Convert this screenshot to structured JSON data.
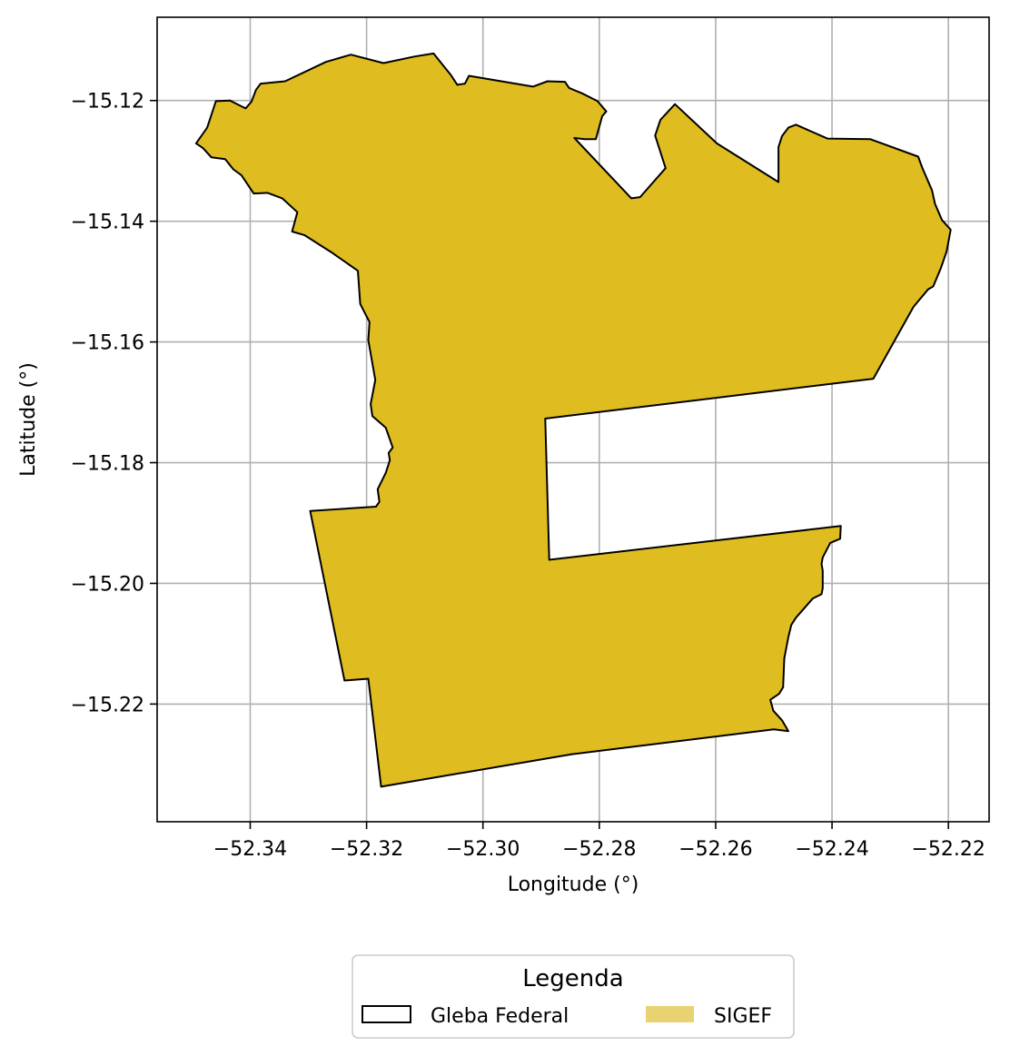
{
  "chart_data": {
    "type": "map",
    "xlabel": "Longitude (°)",
    "ylabel": "Latitude (°)",
    "xlim": [
      -52.356,
      -52.213
    ],
    "ylim": [
      -15.2395,
      -15.1062
    ],
    "x_ticks": [
      {
        "value": -52.34,
        "label": "−52.34"
      },
      {
        "value": -52.32,
        "label": "−52.32"
      },
      {
        "value": -52.3,
        "label": "−52.30"
      },
      {
        "value": -52.28,
        "label": "−52.28"
      },
      {
        "value": -52.26,
        "label": "−52.26"
      },
      {
        "value": -52.24,
        "label": "−52.24"
      },
      {
        "value": -52.22,
        "label": "−52.22"
      }
    ],
    "y_ticks": [
      {
        "value": -15.12,
        "label": "−15.12"
      },
      {
        "value": -15.14,
        "label": "−15.14"
      },
      {
        "value": -15.16,
        "label": "−15.16"
      },
      {
        "value": -15.18,
        "label": "−15.18"
      },
      {
        "value": -15.2,
        "label": "−15.20"
      },
      {
        "value": -15.22,
        "label": "−15.22"
      }
    ],
    "grid": true,
    "legend": {
      "title": "Legenda",
      "placement": "bottom-center",
      "entries": [
        {
          "label": "Gleba Federal",
          "style": "outline",
          "color": "#000000"
        },
        {
          "label": "SIGEF",
          "style": "fill",
          "color": "#e8d272"
        }
      ]
    },
    "polygon": {
      "fill": "#dfbd20",
      "stroke": "#000000",
      "coords": [
        [
          -52.3493,
          -15.1271
        ],
        [
          -52.3474,
          -15.1245
        ],
        [
          -52.3459,
          -15.1201
        ],
        [
          -52.3435,
          -15.12
        ],
        [
          -52.3408,
          -15.1213
        ],
        [
          -52.3398,
          -15.1202
        ],
        [
          -52.339,
          -15.1182
        ],
        [
          -52.3382,
          -15.1172
        ],
        [
          -52.334,
          -15.1168
        ],
        [
          -52.327,
          -15.1136
        ],
        [
          -52.3227,
          -15.1124
        ],
        [
          -52.3171,
          -15.1138
        ],
        [
          -52.3117,
          -15.1127
        ],
        [
          -52.3085,
          -15.1122
        ],
        [
          -52.3055,
          -15.1158
        ],
        [
          -52.3044,
          -15.1174
        ],
        [
          -52.3031,
          -15.1172
        ],
        [
          -52.3024,
          -15.1159
        ],
        [
          -52.2914,
          -15.1177
        ],
        [
          -52.2889,
          -15.1168
        ],
        [
          -52.2859,
          -15.1169
        ],
        [
          -52.2852,
          -15.1179
        ],
        [
          -52.283,
          -15.1188
        ],
        [
          -52.2803,
          -15.1201
        ],
        [
          -52.2788,
          -15.1218
        ],
        [
          -52.2795,
          -15.1226
        ],
        [
          -52.2806,
          -15.1264
        ],
        [
          -52.2825,
          -15.1264
        ],
        [
          -52.2843,
          -15.1262
        ],
        [
          -52.2745,
          -15.1362
        ],
        [
          -52.273,
          -15.136
        ],
        [
          -52.2686,
          -15.1312
        ],
        [
          -52.2704,
          -15.1258
        ],
        [
          -52.2695,
          -15.1232
        ],
        [
          -52.267,
          -15.1206
        ],
        [
          -52.2598,
          -15.1271
        ],
        [
          -52.2492,
          -15.1335
        ],
        [
          -52.2492,
          -15.1277
        ],
        [
          -52.2486,
          -15.1259
        ],
        [
          -52.2475,
          -15.1245
        ],
        [
          -52.2462,
          -15.124
        ],
        [
          -52.2408,
          -15.1263
        ],
        [
          -52.2334,
          -15.1264
        ],
        [
          -52.2252,
          -15.1293
        ],
        [
          -52.2245,
          -15.1311
        ],
        [
          -52.2228,
          -15.1349
        ],
        [
          -52.2223,
          -15.1371
        ],
        [
          -52.2211,
          -15.1398
        ],
        [
          -52.2196,
          -15.1414
        ],
        [
          -52.2203,
          -15.145
        ],
        [
          -52.2213,
          -15.1478
        ],
        [
          -52.2226,
          -15.1508
        ],
        [
          -52.2235,
          -15.1513
        ],
        [
          -52.226,
          -15.1542
        ],
        [
          -52.2329,
          -15.1661
        ],
        [
          -52.2893,
          -15.1727
        ],
        [
          -52.2886,
          -15.1961
        ],
        [
          -52.2385,
          -15.1905
        ],
        [
          -52.2386,
          -15.1926
        ],
        [
          -52.2403,
          -15.1933
        ],
        [
          -52.2416,
          -15.1957
        ],
        [
          -52.2418,
          -15.1968
        ],
        [
          -52.2416,
          -15.1979
        ],
        [
          -52.2416,
          -15.2008
        ],
        [
          -52.2418,
          -15.2018
        ],
        [
          -52.2433,
          -15.2025
        ],
        [
          -52.2462,
          -15.2057
        ],
        [
          -52.247,
          -15.2069
        ],
        [
          -52.2475,
          -15.2089
        ],
        [
          -52.2482,
          -15.2124
        ],
        [
          -52.2484,
          -15.2172
        ],
        [
          -52.2491,
          -15.2183
        ],
        [
          -52.2506,
          -15.2193
        ],
        [
          -52.2501,
          -15.2211
        ],
        [
          -52.2486,
          -15.2227
        ],
        [
          -52.2475,
          -15.2245
        ],
        [
          -52.25,
          -15.2242
        ],
        [
          -52.2847,
          -15.2283
        ],
        [
          -52.3175,
          -15.2337
        ],
        [
          -52.3197,
          -15.2158
        ],
        [
          -52.3238,
          -15.2161
        ],
        [
          -52.3297,
          -15.188
        ],
        [
          -52.3184,
          -15.1873
        ],
        [
          -52.3178,
          -15.1865
        ],
        [
          -52.3181,
          -15.1844
        ],
        [
          -52.3167,
          -15.1817
        ],
        [
          -52.316,
          -15.1796
        ],
        [
          -52.3162,
          -15.1784
        ],
        [
          -52.3155,
          -15.1775
        ],
        [
          -52.3167,
          -15.1742
        ],
        [
          -52.319,
          -15.1723
        ],
        [
          -52.3193,
          -15.1703
        ],
        [
          -52.3185,
          -15.1663
        ],
        [
          -52.3197,
          -15.1597
        ],
        [
          -52.3195,
          -15.1567
        ],
        [
          -52.3211,
          -15.1537
        ],
        [
          -52.3215,
          -15.1482
        ],
        [
          -52.3261,
          -15.1451
        ],
        [
          -52.3307,
          -15.1423
        ],
        [
          -52.3328,
          -15.1417
        ],
        [
          -52.3319,
          -15.1385
        ],
        [
          -52.3345,
          -15.1362
        ],
        [
          -52.337,
          -15.1353
        ],
        [
          -52.3394,
          -15.1354
        ],
        [
          -52.3415,
          -15.1324
        ],
        [
          -52.3429,
          -15.1314
        ],
        [
          -52.3443,
          -15.1297
        ],
        [
          -52.3467,
          -15.1294
        ],
        [
          -52.3481,
          -15.1279
        ]
      ]
    }
  }
}
